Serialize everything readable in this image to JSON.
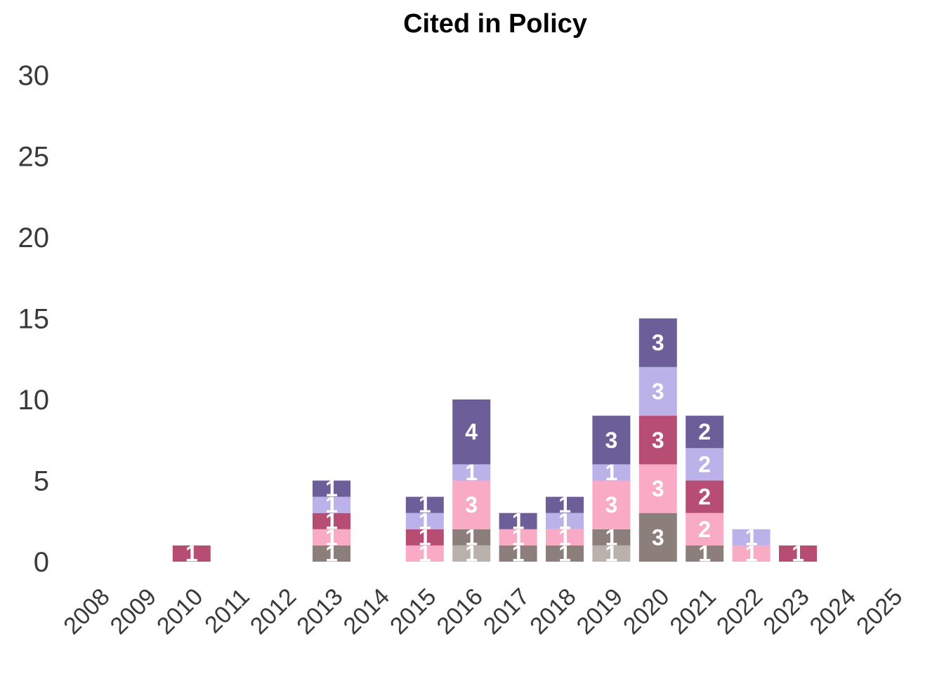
{
  "chart_data": {
    "type": "bar",
    "stacked": true,
    "title": "Cited in Policy",
    "xlabel": "",
    "ylabel": "",
    "ylim": [
      0,
      30
    ],
    "yticks": [
      "0",
      "5",
      "10",
      "15",
      "20",
      "25",
      "30"
    ],
    "grid": false,
    "legend": "none",
    "categories": [
      "2008",
      "2009",
      "2010",
      "2011",
      "2012",
      "2013",
      "2014",
      "2015",
      "2016",
      "2017",
      "2018",
      "2019",
      "2020",
      "2021",
      "2022",
      "2023",
      "2024",
      "2025"
    ],
    "series": [
      {
        "color": "#bab0ac",
        "values": [
          0,
          0,
          0,
          0,
          0,
          0,
          0,
          0,
          1,
          0,
          0,
          1,
          0,
          0,
          0,
          0,
          0,
          0
        ]
      },
      {
        "color": "#8c7e7b",
        "values": [
          0,
          0,
          0,
          0,
          0,
          1,
          0,
          0,
          1,
          1,
          1,
          1,
          3,
          1,
          0,
          0,
          0,
          0
        ]
      },
      {
        "color": "#f9aac4",
        "values": [
          0,
          0,
          0,
          0,
          0,
          1,
          0,
          1,
          3,
          1,
          1,
          3,
          3,
          2,
          1,
          0,
          0,
          0
        ]
      },
      {
        "color": "#b84d73",
        "values": [
          0,
          0,
          1,
          0,
          0,
          1,
          0,
          1,
          0,
          0,
          0,
          0,
          3,
          2,
          0,
          1,
          0,
          0
        ]
      },
      {
        "color": "#bcb2ea",
        "values": [
          0,
          0,
          0,
          0,
          0,
          1,
          0,
          1,
          1,
          0,
          1,
          1,
          3,
          2,
          1,
          0,
          0,
          0
        ]
      },
      {
        "color": "#6c5f99",
        "values": [
          0,
          0,
          0,
          0,
          0,
          1,
          0,
          1,
          4,
          1,
          1,
          3,
          3,
          2,
          0,
          0,
          0,
          0
        ]
      }
    ]
  }
}
